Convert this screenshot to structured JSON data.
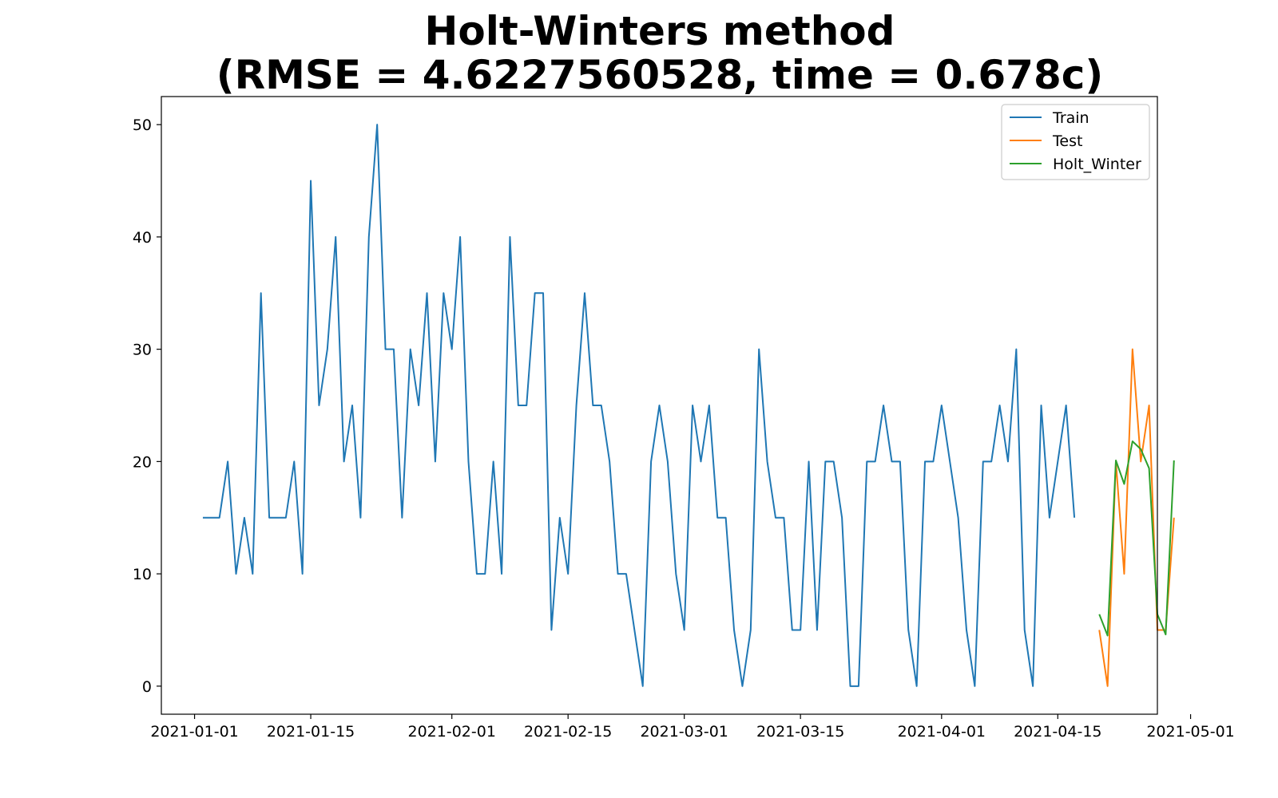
{
  "chart_data": {
    "type": "line",
    "title": "Holt-Winters method",
    "subtitle": "(RMSE = 4.6227560528, time = 0.678c)",
    "xlabel": "",
    "ylabel": "",
    "x_type": "date",
    "xlim": [
      "2020-12-28",
      "2021-04-27"
    ],
    "ylim": [
      -2.5,
      52.5
    ],
    "yticks": [
      0,
      10,
      20,
      30,
      40,
      50
    ],
    "xticks": [
      "2021-01-01",
      "2021-01-15",
      "2021-02-01",
      "2021-02-15",
      "2021-03-01",
      "2021-03-15",
      "2021-04-01",
      "2021-04-15",
      "2021-05-01"
    ],
    "grid": false,
    "legend": "top-right",
    "series": [
      {
        "name": "Train",
        "color": "#1f77b4",
        "start": "2021-01-02",
        "values": [
          15,
          15,
          15,
          20,
          10,
          15,
          10,
          35,
          15,
          15,
          15,
          20,
          10,
          45,
          25,
          30,
          40,
          20,
          25,
          15,
          40,
          50,
          30,
          30,
          15,
          30,
          25,
          35,
          20,
          35,
          30,
          40,
          20,
          10,
          10,
          20,
          10,
          40,
          25,
          25,
          35,
          35,
          5,
          15,
          10,
          25,
          35,
          25,
          25,
          20,
          10,
          10,
          5,
          0,
          20,
          25,
          20,
          10,
          5,
          25,
          20,
          25,
          15,
          15,
          5,
          0,
          5,
          30,
          20,
          15,
          15,
          5,
          5,
          20,
          5,
          20,
          20,
          15,
          0,
          0,
          20,
          20,
          25,
          20,
          20,
          5,
          0,
          20,
          20,
          25,
          20,
          15,
          5,
          0,
          20,
          20,
          25,
          20,
          30,
          5,
          0,
          25,
          15,
          20,
          25,
          15
        ]
      },
      {
        "name": "Test",
        "color": "#ff7f0e",
        "start": "2021-04-20",
        "values": [
          5,
          0,
          20,
          10,
          30,
          20,
          25,
          5,
          5,
          15
        ]
      },
      {
        "name": "Holt_Winter",
        "color": "#2ca02c",
        "start": "2021-04-20",
        "values": [
          6.4,
          4.5,
          20.1,
          18.0,
          21.8,
          21.1,
          19.4,
          6.4,
          4.6,
          20.1
        ]
      }
    ]
  }
}
